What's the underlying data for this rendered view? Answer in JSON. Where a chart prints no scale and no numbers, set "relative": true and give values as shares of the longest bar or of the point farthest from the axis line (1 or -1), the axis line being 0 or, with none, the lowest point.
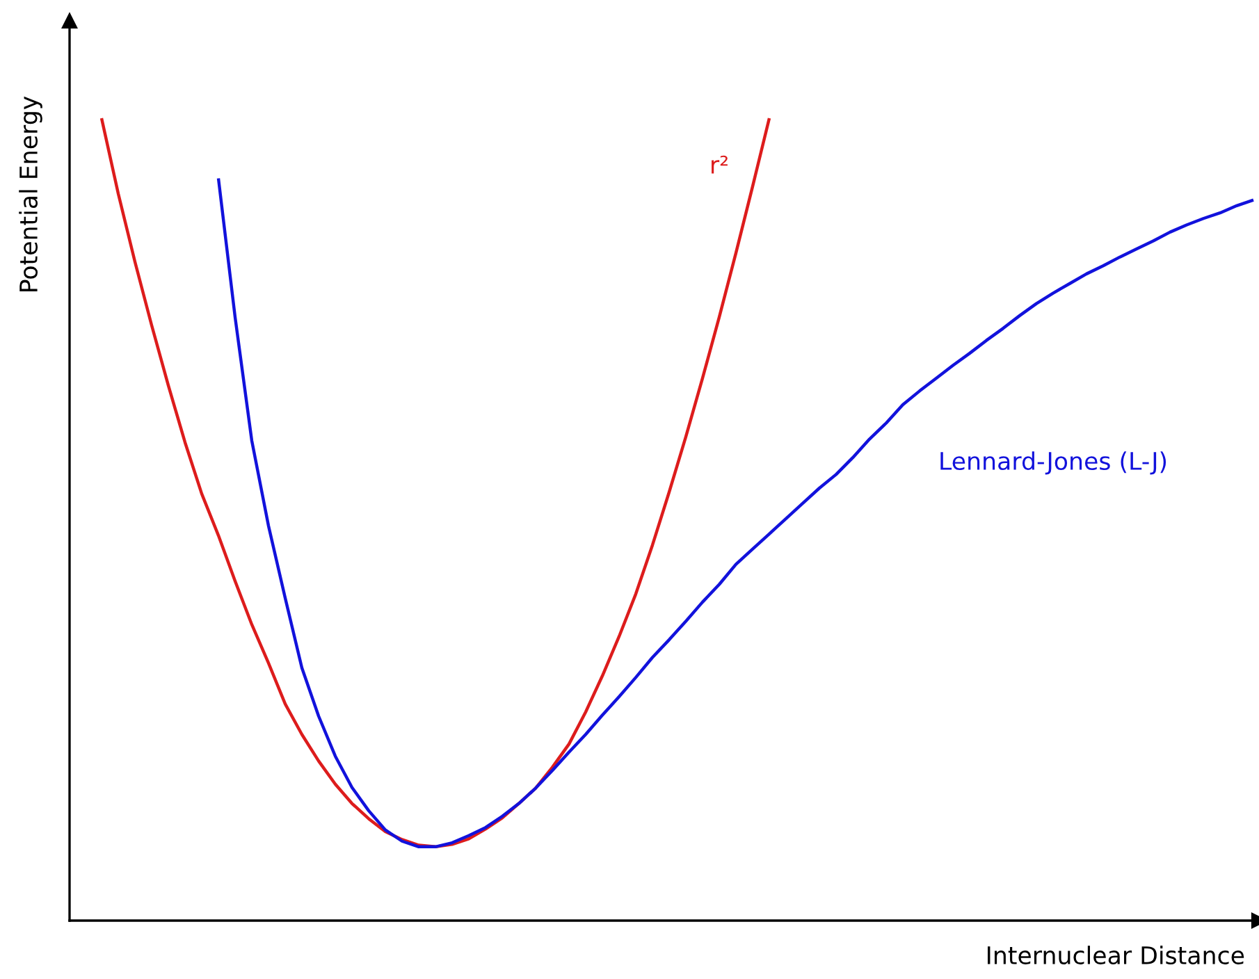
{
  "chart_data": {
    "type": "line",
    "relative": true,
    "xlabel": "Internuclear Distance",
    "ylabel": "Potential Energy",
    "categories": [
      null,
      null,
      null,
      null,
      null,
      null,
      null,
      null,
      null,
      null,
      null,
      null,
      null,
      null,
      null,
      null,
      null,
      null,
      null,
      null,
      null,
      null,
      null,
      null,
      null,
      null,
      null,
      null,
      null,
      null,
      null,
      null,
      null,
      null,
      null,
      null,
      null,
      null,
      null,
      null,
      null,
      null,
      null,
      null,
      null,
      null,
      null,
      null,
      null,
      null,
      null,
      null,
      null,
      null,
      null,
      null,
      null,
      null,
      null,
      null,
      null,
      null,
      null,
      null,
      null,
      null,
      null,
      null,
      null,
      null
    ],
    "series": [
      {
        "name": "r²",
        "color": "#dd1c1c",
        "values": [
          1.0,
          0.906,
          0.821,
          0.742,
          0.667,
          0.596,
          0.532,
          0.48,
          0.423,
          0.369,
          0.321,
          0.27,
          0.232,
          0.199,
          0.17,
          0.146,
          0.127,
          0.111,
          0.101,
          0.094,
          0.092,
          0.095,
          0.102,
          0.114,
          0.128,
          0.146,
          0.165,
          0.191,
          0.22,
          0.26,
          0.305,
          0.354,
          0.407,
          0.468,
          0.534,
          0.603,
          0.676,
          0.752,
          0.832,
          0.915,
          1.0,
          null,
          null,
          null,
          null,
          null,
          null,
          null,
          null,
          null,
          null,
          null,
          null,
          null,
          null,
          null,
          null,
          null,
          null,
          null,
          null,
          null,
          null,
          null,
          null,
          null,
          null,
          null,
          null,
          null
        ]
      },
      {
        "name": "Lennard-Jones (L-J)",
        "color": "#1212dc",
        "values": [
          null,
          null,
          null,
          null,
          null,
          null,
          null,
          0.925,
          0.752,
          0.598,
          0.492,
          0.402,
          0.315,
          0.255,
          0.205,
          0.166,
          0.137,
          0.113,
          0.099,
          0.092,
          0.092,
          0.097,
          0.106,
          0.116,
          0.13,
          0.146,
          0.165,
          0.187,
          0.21,
          0.232,
          0.256,
          0.279,
          0.303,
          0.328,
          0.35,
          0.373,
          0.397,
          0.419,
          0.444,
          0.463,
          0.482,
          0.501,
          0.52,
          0.539,
          0.556,
          0.577,
          0.6,
          0.62,
          0.643,
          0.66,
          0.676,
          0.692,
          0.707,
          0.723,
          0.738,
          0.754,
          0.769,
          0.782,
          0.794,
          0.806,
          0.816,
          0.827,
          0.837,
          0.847,
          0.858,
          0.867,
          0.875,
          0.882,
          0.891,
          0.898
        ]
      }
    ]
  }
}
